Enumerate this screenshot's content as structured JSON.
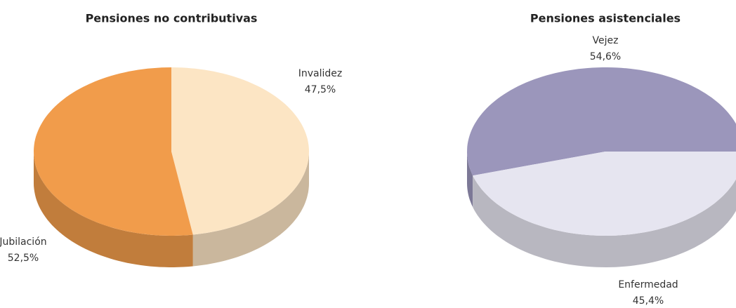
{
  "chart_data": [
    {
      "type": "pie3d",
      "title": "Pensiones no contributivas",
      "categories": [
        "Invalidez",
        "Jubilación"
      ],
      "values": [
        47.5,
        52.5
      ],
      "value_labels": [
        "47,5%",
        "52,5%"
      ],
      "colors": [
        "#fce5c4",
        "#f19c4b"
      ]
    },
    {
      "type": "pie3d",
      "title": "Pensiones asistenciales",
      "categories": [
        "Vejez",
        "Enfermedad"
      ],
      "values": [
        54.6,
        45.4
      ],
      "value_labels": [
        "54,6%",
        "45,4%"
      ],
      "colors": [
        "#9b96bb",
        "#e6e5f0"
      ]
    }
  ]
}
